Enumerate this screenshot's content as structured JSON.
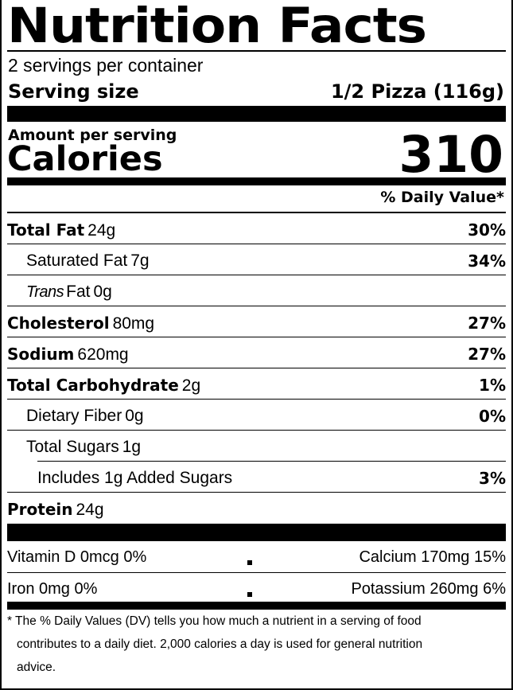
{
  "title": "Nutrition Facts",
  "servings_per_container": "2 servings per container",
  "serving_size_label": "Serving size",
  "serving_size_value": "1/2 Pizza (116g)",
  "amount_per_serving": "Amount per serving",
  "calories_label": "Calories",
  "calories_value": "310",
  "daily_value_header": "% Daily Value*",
  "nutrients": [
    {
      "name": "Total Fat",
      "amount": "24g",
      "dv": "30%"
    },
    {
      "name": "Saturated Fat",
      "amount": "7g",
      "dv": "34%"
    },
    {
      "name_italic": "Trans",
      "name": "Fat",
      "amount": "0g",
      "dv": ""
    },
    {
      "name": "Cholesterol",
      "amount": "80mg",
      "dv": "27%"
    },
    {
      "name": "Sodium",
      "amount": "620mg",
      "dv": "27%"
    },
    {
      "name": "Total Carbohydrate",
      "amount": "2g",
      "dv": "1%"
    },
    {
      "name": "Dietary Fiber",
      "amount": "0g",
      "dv": "0%"
    },
    {
      "name": "Total Sugars",
      "amount": "1g",
      "dv": ""
    },
    {
      "name": "Includes 1g Added Sugars",
      "amount": "",
      "dv": "3%"
    },
    {
      "name": "Protein",
      "amount": "24g",
      "dv": ""
    }
  ],
  "vitamins": [
    {
      "left": "Vitamin D 0mcg 0%",
      "right": "Calcium 170mg 15%"
    },
    {
      "left": "Iron 0mg 0%",
      "right": "Potassium 260mg 6%"
    }
  ],
  "footnote_lines": [
    "* The % Daily Values (DV) tells you how much a nutrient in a serving of food",
    "contributes to a daily diet. 2,000 calories a day is used for general nutrition",
    "advice."
  ]
}
